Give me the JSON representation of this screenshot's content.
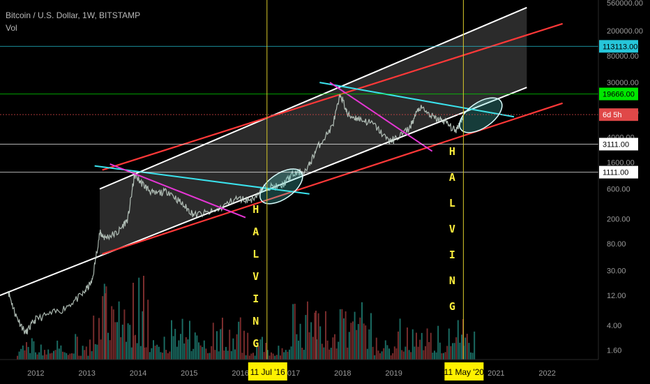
{
  "header": {
    "symbol": "Bitcoin / U.S. Dollar, 1W, BITSTAMP",
    "volume_label": "Vol"
  },
  "chart_data": {
    "type": "line",
    "series": [
      {
        "values": [
          {
            "x": 2011.45,
            "y": 15
          },
          {
            "x": 2011.6,
            "y": 6
          },
          {
            "x": 2011.8,
            "y": 3
          },
          {
            "x": 2012.0,
            "y": 5
          },
          {
            "x": 2012.5,
            "y": 7
          },
          {
            "x": 2012.9,
            "y": 12
          },
          {
            "x": 2013.1,
            "y": 20
          },
          {
            "x": 2013.25,
            "y": 120
          },
          {
            "x": 2013.35,
            "y": 100
          },
          {
            "x": 2013.6,
            "y": 120
          },
          {
            "x": 2013.8,
            "y": 200
          },
          {
            "x": 2013.93,
            "y": 1000
          },
          {
            "x": 2014.1,
            "y": 700
          },
          {
            "x": 2014.3,
            "y": 500
          },
          {
            "x": 2014.6,
            "y": 550
          },
          {
            "x": 2014.9,
            "y": 320
          },
          {
            "x": 2015.1,
            "y": 230
          },
          {
            "x": 2015.5,
            "y": 260
          },
          {
            "x": 2015.9,
            "y": 420
          },
          {
            "x": 2016.2,
            "y": 400
          },
          {
            "x": 2016.5,
            "y": 650
          },
          {
            "x": 2016.8,
            "y": 650
          },
          {
            "x": 2017.0,
            "y": 1000
          },
          {
            "x": 2017.3,
            "y": 1200
          },
          {
            "x": 2017.5,
            "y": 2700
          },
          {
            "x": 2017.8,
            "y": 6000
          },
          {
            "x": 2017.96,
            "y": 19500
          },
          {
            "x": 2018.1,
            "y": 9000
          },
          {
            "x": 2018.3,
            "y": 8000
          },
          {
            "x": 2018.6,
            "y": 6500
          },
          {
            "x": 2018.9,
            "y": 3500
          },
          {
            "x": 2019.0,
            "y": 3600
          },
          {
            "x": 2019.3,
            "y": 5500
          },
          {
            "x": 2019.5,
            "y": 12000
          },
          {
            "x": 2019.8,
            "y": 8000
          },
          {
            "x": 2020.0,
            "y": 7200
          },
          {
            "x": 2020.2,
            "y": 5000
          },
          {
            "x": 2020.36,
            "y": 8700
          }
        ]
      }
    ],
    "yscale": "log",
    "xlim": [
      2011.3,
      2023.0
    ],
    "ylim": [
      1.0,
      560000.0
    ],
    "y_tick_labels": [
      "560000.00",
      "200000.00",
      "80000.00",
      "30000.00",
      "10000.00",
      "4000.00",
      "1600.00",
      "600.00",
      "200.00",
      "80.00",
      "30.00",
      "12.00",
      "4.00",
      "1.60"
    ],
    "x_tick_labels": [
      {
        "label": "2012",
        "x": 2012.0
      },
      {
        "label": "2013",
        "x": 2013.0
      },
      {
        "label": "2014",
        "x": 2014.0
      },
      {
        "label": "2015",
        "x": 2015.0
      },
      {
        "label": "2016",
        "x": 2016.0
      },
      {
        "label": "2017",
        "x": 2017.0
      },
      {
        "label": "2018",
        "x": 2018.0
      },
      {
        "label": "2019",
        "x": 2019.0
      },
      {
        "label": "2021",
        "x": 2021.0
      },
      {
        "label": "2022",
        "x": 2022.0
      }
    ],
    "price_markers": [
      {
        "value": 113113,
        "label": "113113.00",
        "color": "#26c6da"
      },
      {
        "value": 19666,
        "label": "19666.00",
        "color": "#00e700"
      },
      {
        "value": 9200,
        "label": "6d 5h",
        "color": "#e04848"
      },
      {
        "value": 3111,
        "label": "3111.00",
        "color": "#ffffff"
      },
      {
        "value": 1111,
        "label": "1111.00",
        "color": "#ffffff"
      }
    ],
    "halvings": [
      {
        "date": 2016.52,
        "label": "11 Jul '16",
        "letters": [
          "H",
          "A",
          "L",
          "V",
          "I",
          "N",
          "G"
        ]
      },
      {
        "date": 2020.36,
        "label": "11 May '20",
        "letters": [
          "H",
          "A",
          "L",
          "V",
          "I",
          "N",
          "G"
        ]
      }
    ],
    "channel_lines": [
      {
        "name": "upper-white",
        "color": "#ffffff",
        "p1": {
          "x": 2013.25,
          "y": 600
        },
        "p2": {
          "x": 2021.6,
          "y": 470000
        }
      },
      {
        "name": "upper-red",
        "color": "#ff3838",
        "p1": {
          "x": 2013.3,
          "y": 1200
        },
        "p2": {
          "x": 2022.3,
          "y": 260000
        }
      },
      {
        "name": "lower-white",
        "color": "#ffffff",
        "p1": {
          "x": 2011.3,
          "y": 12
        },
        "p2": {
          "x": 2021.6,
          "y": 25000
        }
      },
      {
        "name": "lower-red",
        "color": "#ff3838",
        "p1": {
          "x": 2013.3,
          "y": 55
        },
        "p2": {
          "x": 2022.3,
          "y": 14000
        }
      }
    ],
    "trend_lines": [
      {
        "name": "cyan-2014",
        "color": "#3be3ee",
        "p1": {
          "x": 2013.15,
          "y": 1400
        },
        "p2": {
          "x": 2017.35,
          "y": 500
        }
      },
      {
        "name": "cyan-2018",
        "color": "#3be3ee",
        "p1": {
          "x": 2017.55,
          "y": 30000
        },
        "p2": {
          "x": 2021.35,
          "y": 8500
        }
      },
      {
        "name": "magenta-2014",
        "color": "#e536d4",
        "p1": {
          "x": 2013.45,
          "y": 1500
        },
        "p2": {
          "x": 2016.1,
          "y": 210
        }
      },
      {
        "name": "magenta-2018",
        "color": "#e536d4",
        "p1": {
          "x": 2017.75,
          "y": 30000
        },
        "p2": {
          "x": 2019.75,
          "y": 2400
        }
      }
    ],
    "ellipses": [
      {
        "name": "ellipse-2016",
        "x": 2016.8,
        "y": 660
      },
      {
        "name": "ellipse-2020",
        "x": 2020.7,
        "y": 9000
      }
    ],
    "grid": false,
    "legend": "none"
  }
}
